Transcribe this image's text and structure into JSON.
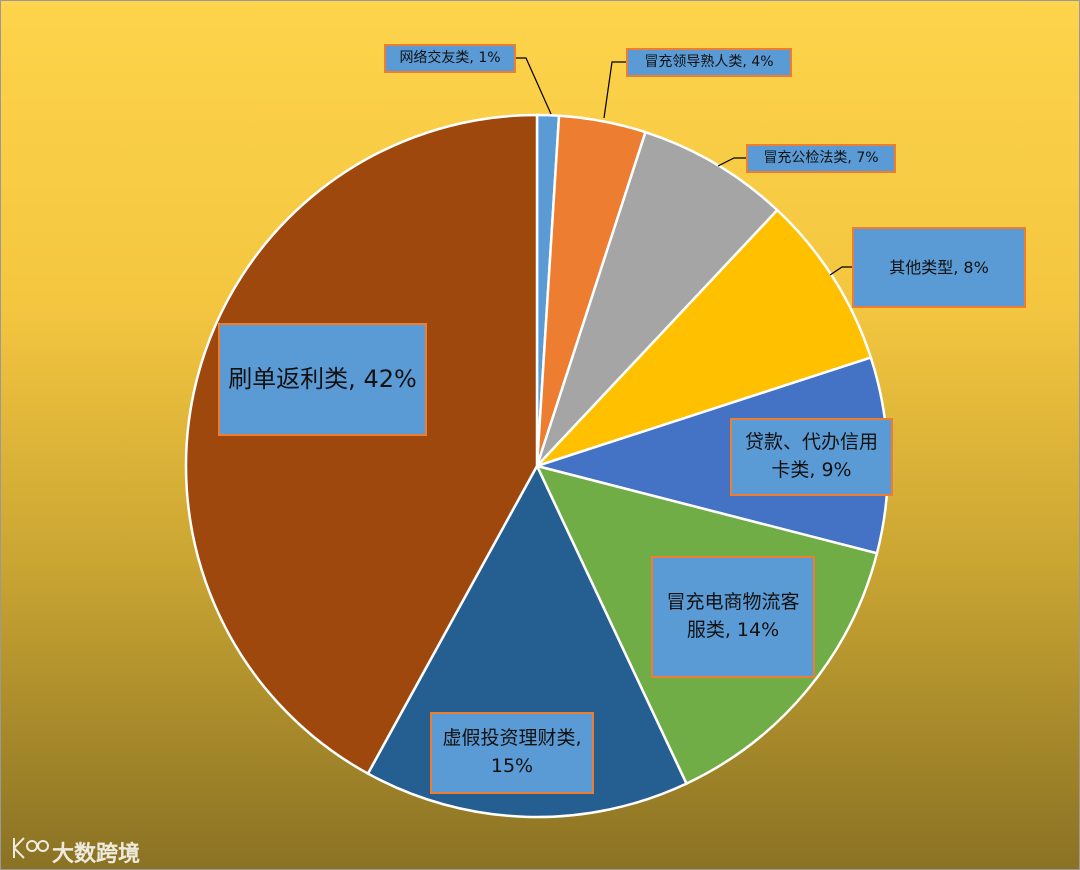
{
  "chart_data": {
    "type": "pie",
    "values": [
      1,
      4,
      7,
      8,
      9,
      14,
      15,
      42
    ],
    "value_labels": [
      "网络交友类, 1%",
      "冒充领导熟人类, 4%",
      "冒充公检法类, 7%",
      "其他类型, 8%",
      "贷款、代办信用卡类, 9%",
      "冒充电商物流客服类, 14%",
      "虚假投资理财类, 15%",
      "刷单返利类, 42%"
    ],
    "colors": [
      "#5b9bd5",
      "#ed7d31",
      "#a5a5a5",
      "#ffc000",
      "#4472c4",
      "#70ad47",
      "#255e91",
      "#9e480e"
    ],
    "watermark": "大数跨境"
  }
}
